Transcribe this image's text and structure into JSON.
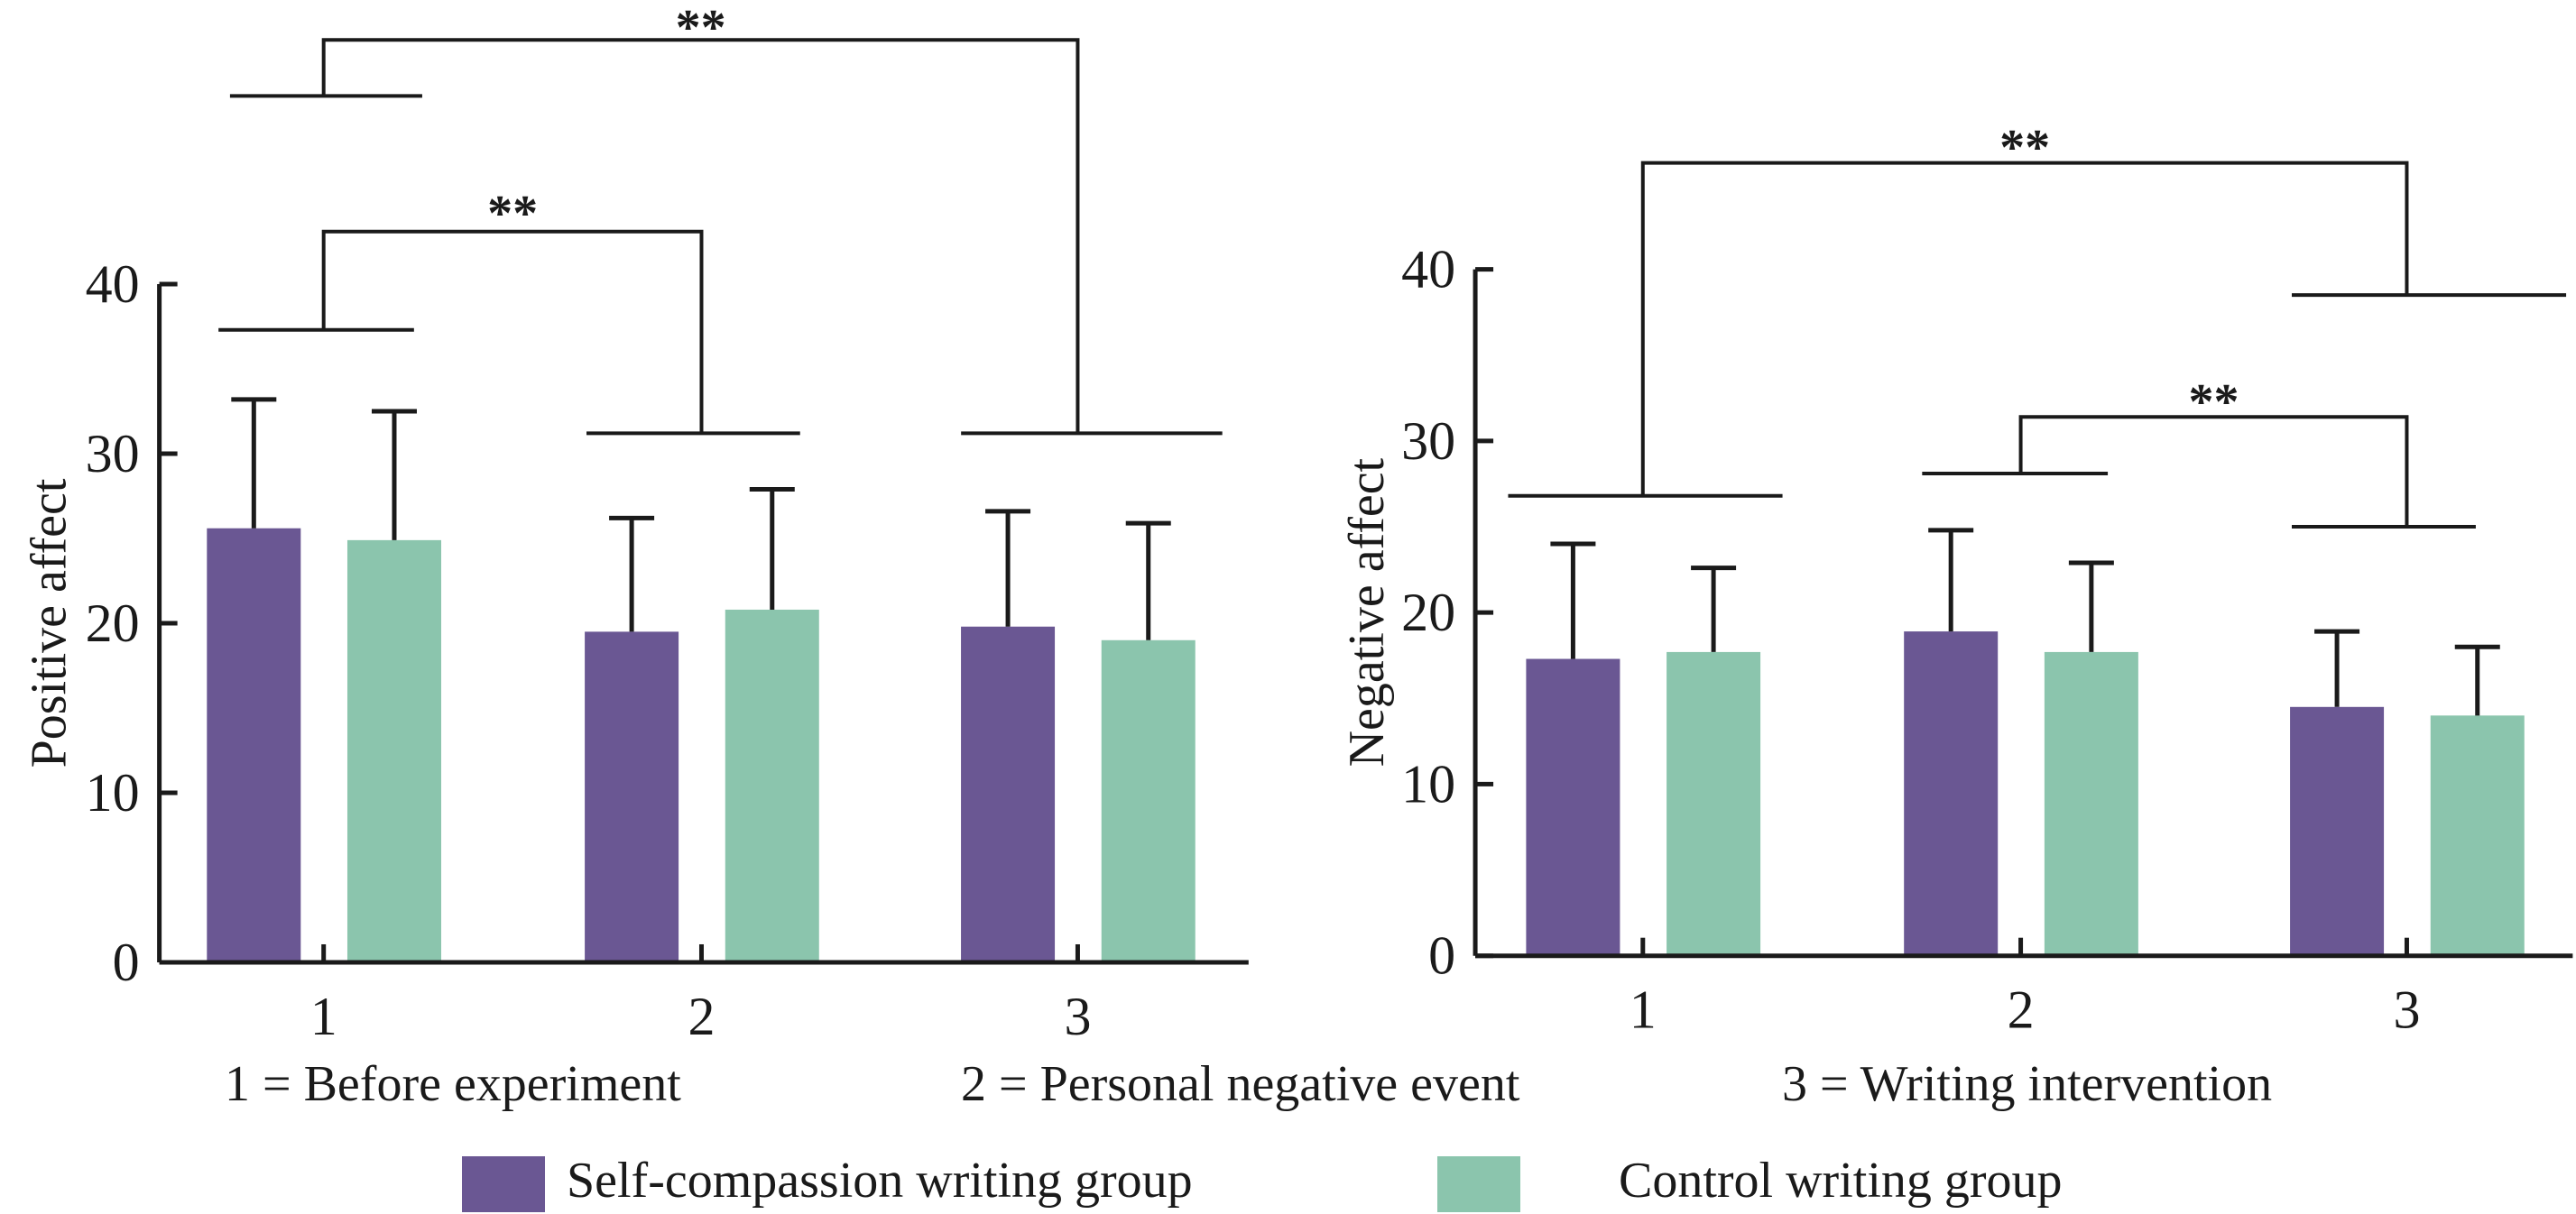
{
  "colors": {
    "self_compassion": "#6A5793",
    "control": "#8BC5AD",
    "axis": "#1a1a1a"
  },
  "legend": {
    "placement": "bottom",
    "items": [
      {
        "label": "Self-compassion writing group",
        "color": "#6A5793"
      },
      {
        "label": "Control writing group",
        "color": "#8BC5AD"
      }
    ]
  },
  "category_key": [
    "1 = Before experiment",
    "2 = Personal negative event",
    "3 = Writing intervention"
  ],
  "chart_data": [
    {
      "type": "bar",
      "ylabel": "Positive affect",
      "xlabel": "",
      "categories": [
        "1",
        "2",
        "3"
      ],
      "ylim": [
        0,
        40
      ],
      "yticks": [
        "0",
        "10",
        "20",
        "30",
        "40"
      ],
      "grid": false,
      "series": [
        {
          "name": "Self-compassion writing group",
          "values": [
            25.6,
            19.5,
            19.8
          ],
          "error_upper": [
            33.2,
            26.2,
            26.6
          ]
        },
        {
          "name": "Control writing group",
          "values": [
            24.9,
            20.8,
            19.0
          ],
          "error_upper": [
            32.5,
            27.9,
            25.9
          ]
        }
      ],
      "annotations": [
        {
          "from": "1",
          "to": "3",
          "text": "**"
        },
        {
          "from": "1",
          "to": "2",
          "text": "**"
        }
      ]
    },
    {
      "type": "bar",
      "ylabel": "Negative affect",
      "xlabel": "",
      "categories": [
        "1",
        "2",
        "3"
      ],
      "ylim": [
        0,
        40
      ],
      "yticks": [
        "0",
        "10",
        "20",
        "30",
        "40"
      ],
      "grid": false,
      "series": [
        {
          "name": "Self-compassion writing group",
          "values": [
            17.3,
            18.9,
            14.5
          ],
          "error_upper": [
            24.0,
            24.8,
            18.9
          ]
        },
        {
          "name": "Control writing group",
          "values": [
            17.7,
            17.7,
            14.0
          ],
          "error_upper": [
            22.6,
            22.9,
            18.0
          ]
        }
      ],
      "annotations": [
        {
          "from": "1",
          "to": "3",
          "text": "**"
        },
        {
          "from": "2",
          "to": "3",
          "text": "**"
        }
      ]
    }
  ]
}
